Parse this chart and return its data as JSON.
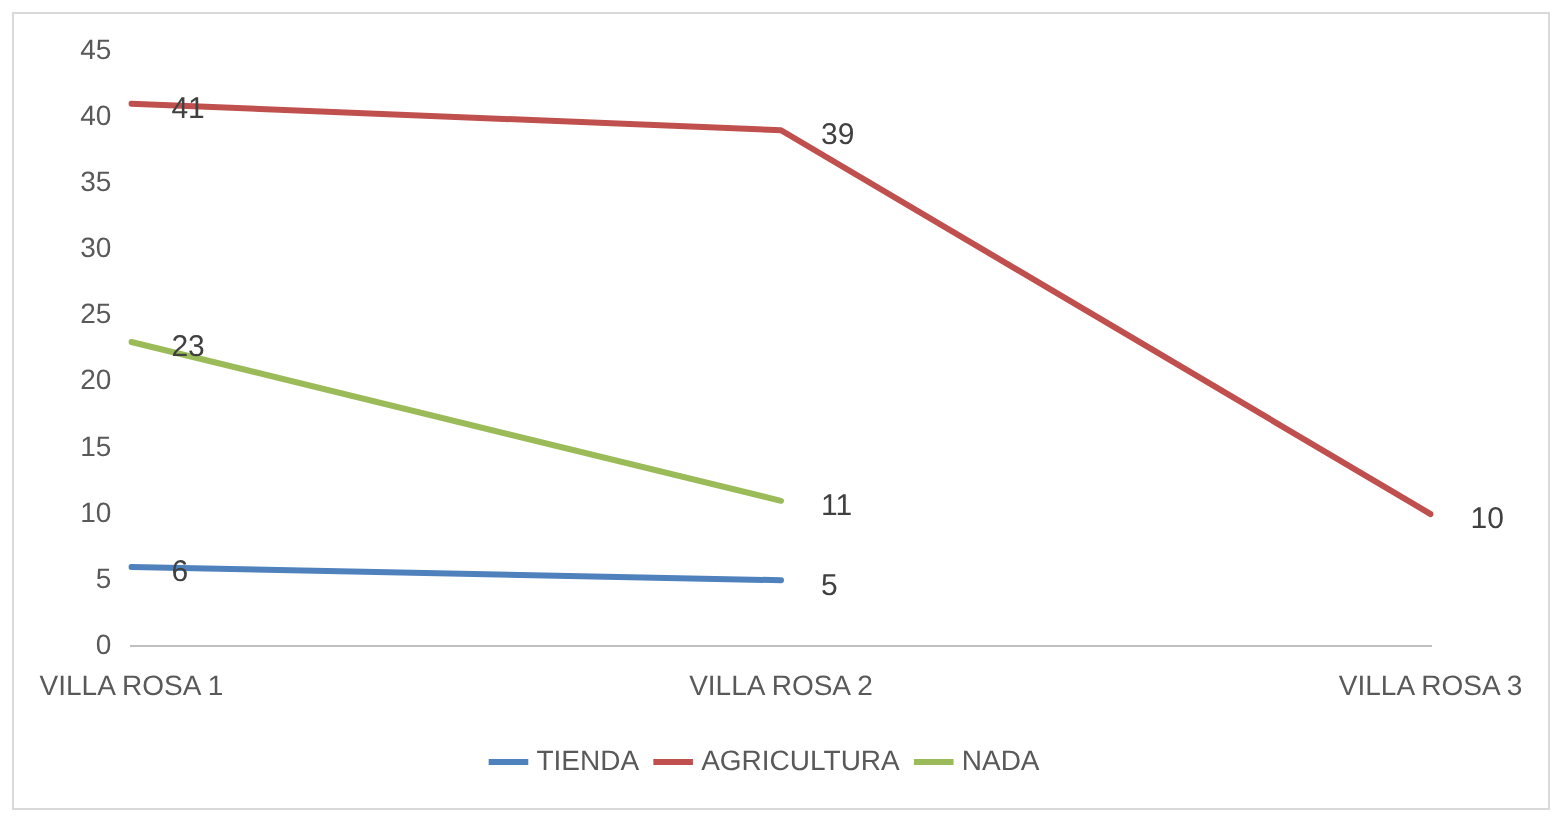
{
  "chart_data": {
    "type": "line",
    "categories": [
      "VILLA ROSA 1",
      "VILLA ROSA 2",
      "VILLA ROSA 3"
    ],
    "series": [
      {
        "name": "TIENDA",
        "color": "#4f81bd",
        "values": [
          6,
          5,
          null
        ]
      },
      {
        "name": "AGRICULTURA",
        "color": "#c0504d",
        "values": [
          41,
          39,
          10
        ]
      },
      {
        "name": "NADA",
        "color": "#9bbb59",
        "values": [
          23,
          11,
          null
        ]
      }
    ],
    "ylim": [
      0,
      45
    ],
    "yticks": [
      0,
      5,
      10,
      15,
      20,
      25,
      30,
      35,
      40,
      45
    ],
    "grid": false,
    "legend": "bottom",
    "data_labels": true,
    "marker": "none",
    "line_style": "solid"
  }
}
